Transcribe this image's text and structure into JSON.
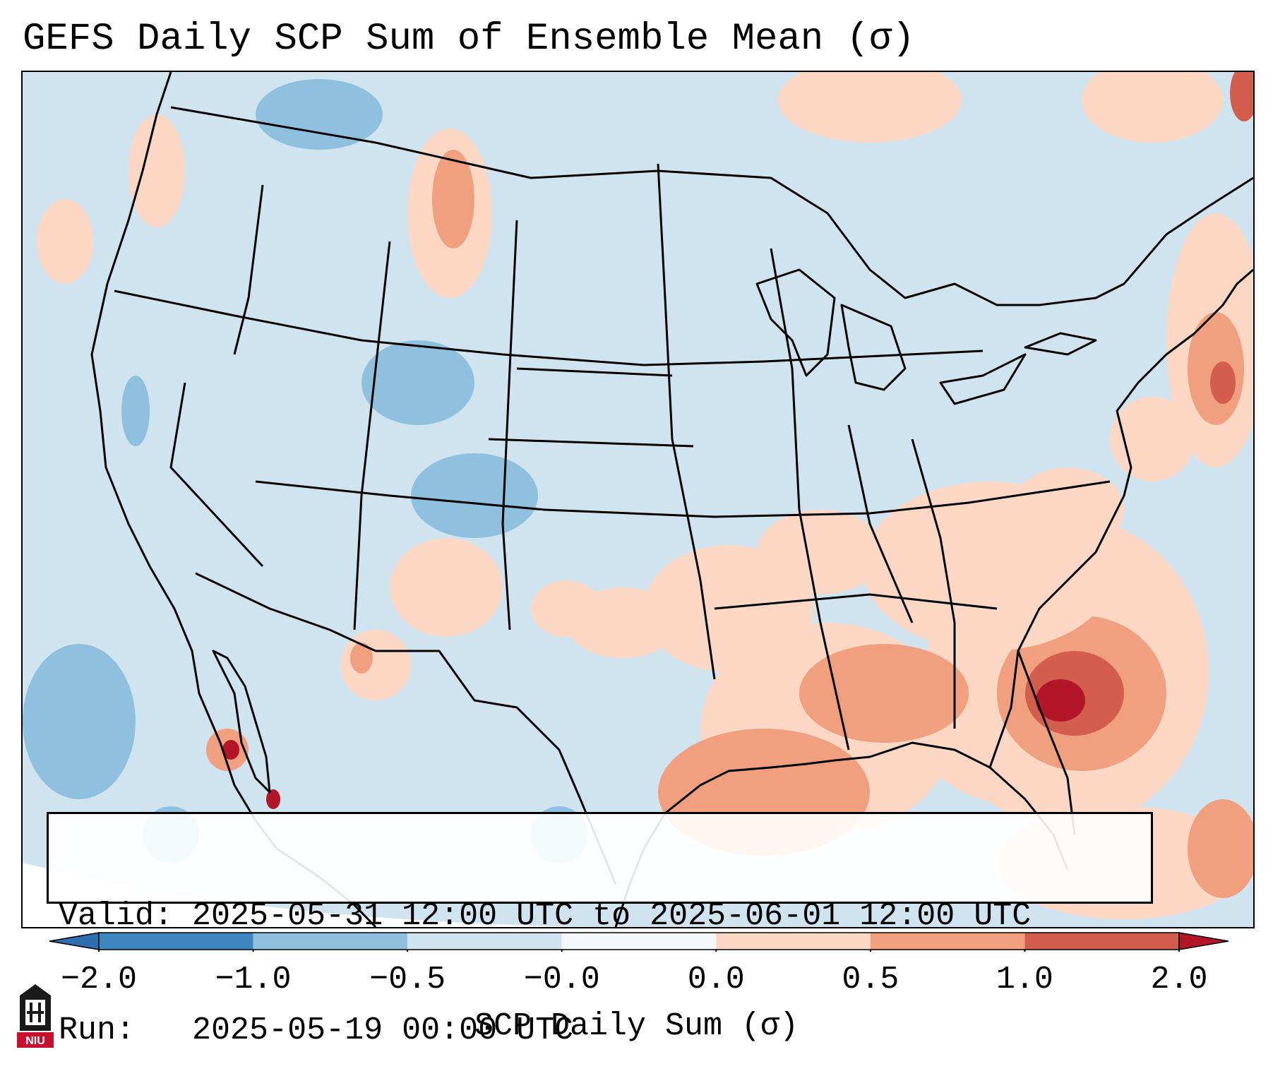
{
  "title": "GEFS Daily SCP Sum of Ensemble Mean (σ)",
  "info": {
    "valid_label": "Valid:",
    "valid_value": "2025-05-31 12:00 UTC to 2025-06-01 12:00 UTC",
    "run_label": "Run:",
    "run_value": "2025-05-19 00:00 UTC"
  },
  "colorbar": {
    "label": "SCP Daily Sum (σ)",
    "ticks": [
      "−2.0",
      "−1.0",
      "−0.5",
      "−0.0",
      "0.0",
      "0.5",
      "1.0",
      "2.0"
    ],
    "colors": [
      "#3f86c0",
      "#8fc0de",
      "#d0e4f0",
      "#f5f7f8",
      "#fcd8c4",
      "#f0a07f",
      "#d35e4e",
      "#b31529"
    ],
    "extend_low_color": "#2d6fb0",
    "extend_high_color": "#b31529"
  },
  "logo": {
    "text": "NIU",
    "color": "#c8102e"
  },
  "map": {
    "base_color": "#d0e4f0",
    "light_warm": "#fcd8c4",
    "warm": "#f0a07f",
    "hot": "#d35e4e",
    "hottest": "#b31529",
    "cool": "#8fc0de"
  }
}
